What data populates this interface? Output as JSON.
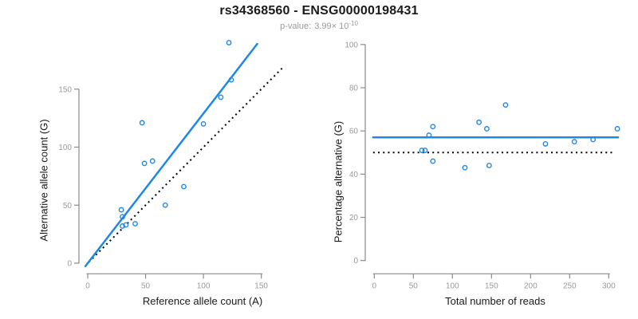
{
  "header": {
    "title": "rs34368560 - ENSG00000198431",
    "pvalue_label": "p-value:",
    "pvalue_mantissa": "3.99",
    "pvalue_times": "× 10",
    "pvalue_exponent": "-10"
  },
  "colors": {
    "accent_blue": "#1E87E8",
    "axis_gray": "#8a8a8a",
    "tick_label_gray": "#9a9a9a",
    "reference_black": "#000000"
  },
  "chart_data": [
    {
      "type": "scatter",
      "xlabel": "Reference allele count (A)",
      "ylabel": "Alternative allele count (G)",
      "xticks": [
        0,
        50,
        100,
        150
      ],
      "yticks": [
        0,
        50,
        100,
        150
      ],
      "xlim": [
        0,
        170
      ],
      "ylim": [
        0,
        195
      ],
      "grid": false,
      "points": [
        [
          122,
          190
        ],
        [
          124,
          158
        ],
        [
          115,
          143
        ],
        [
          100,
          120
        ],
        [
          47,
          121
        ],
        [
          56,
          88
        ],
        [
          49,
          86
        ],
        [
          83,
          66
        ],
        [
          67,
          50
        ],
        [
          29,
          46
        ],
        [
          30,
          40
        ],
        [
          30,
          32
        ],
        [
          33,
          33
        ],
        [
          41,
          34
        ]
      ],
      "fit_line": {
        "style": "solid",
        "slope": 1.29,
        "intercept": 0,
        "x_range": [
          -2,
          146.5
        ]
      },
      "reference_line": {
        "style": "dotted",
        "slope": 1,
        "intercept": 0,
        "x_range": [
          1,
          170
        ]
      }
    },
    {
      "type": "scatter",
      "xlabel": "Total number of reads",
      "ylabel": "Percentage alternative (G)",
      "xticks": [
        0,
        50,
        100,
        150,
        200,
        250,
        300
      ],
      "yticks": [
        0,
        20,
        40,
        60,
        80,
        100
      ],
      "xlim": [
        0,
        312
      ],
      "ylim": [
        0,
        100
      ],
      "grid": false,
      "points": [
        [
          311,
          61
        ],
        [
          280,
          56
        ],
        [
          256,
          55
        ],
        [
          219,
          54
        ],
        [
          168,
          72
        ],
        [
          144,
          61
        ],
        [
          134,
          64
        ],
        [
          147,
          44
        ],
        [
          116,
          43
        ],
        [
          75,
          62
        ],
        [
          70,
          58
        ],
        [
          65,
          51
        ],
        [
          61,
          51
        ],
        [
          75,
          46
        ]
      ],
      "fit_line": {
        "style": "solid",
        "value": 57,
        "x_range": [
          -1.5,
          312
        ]
      },
      "reference_line": {
        "style": "dotted",
        "value": 50,
        "x_range": [
          -1.5,
          307
        ]
      }
    }
  ]
}
